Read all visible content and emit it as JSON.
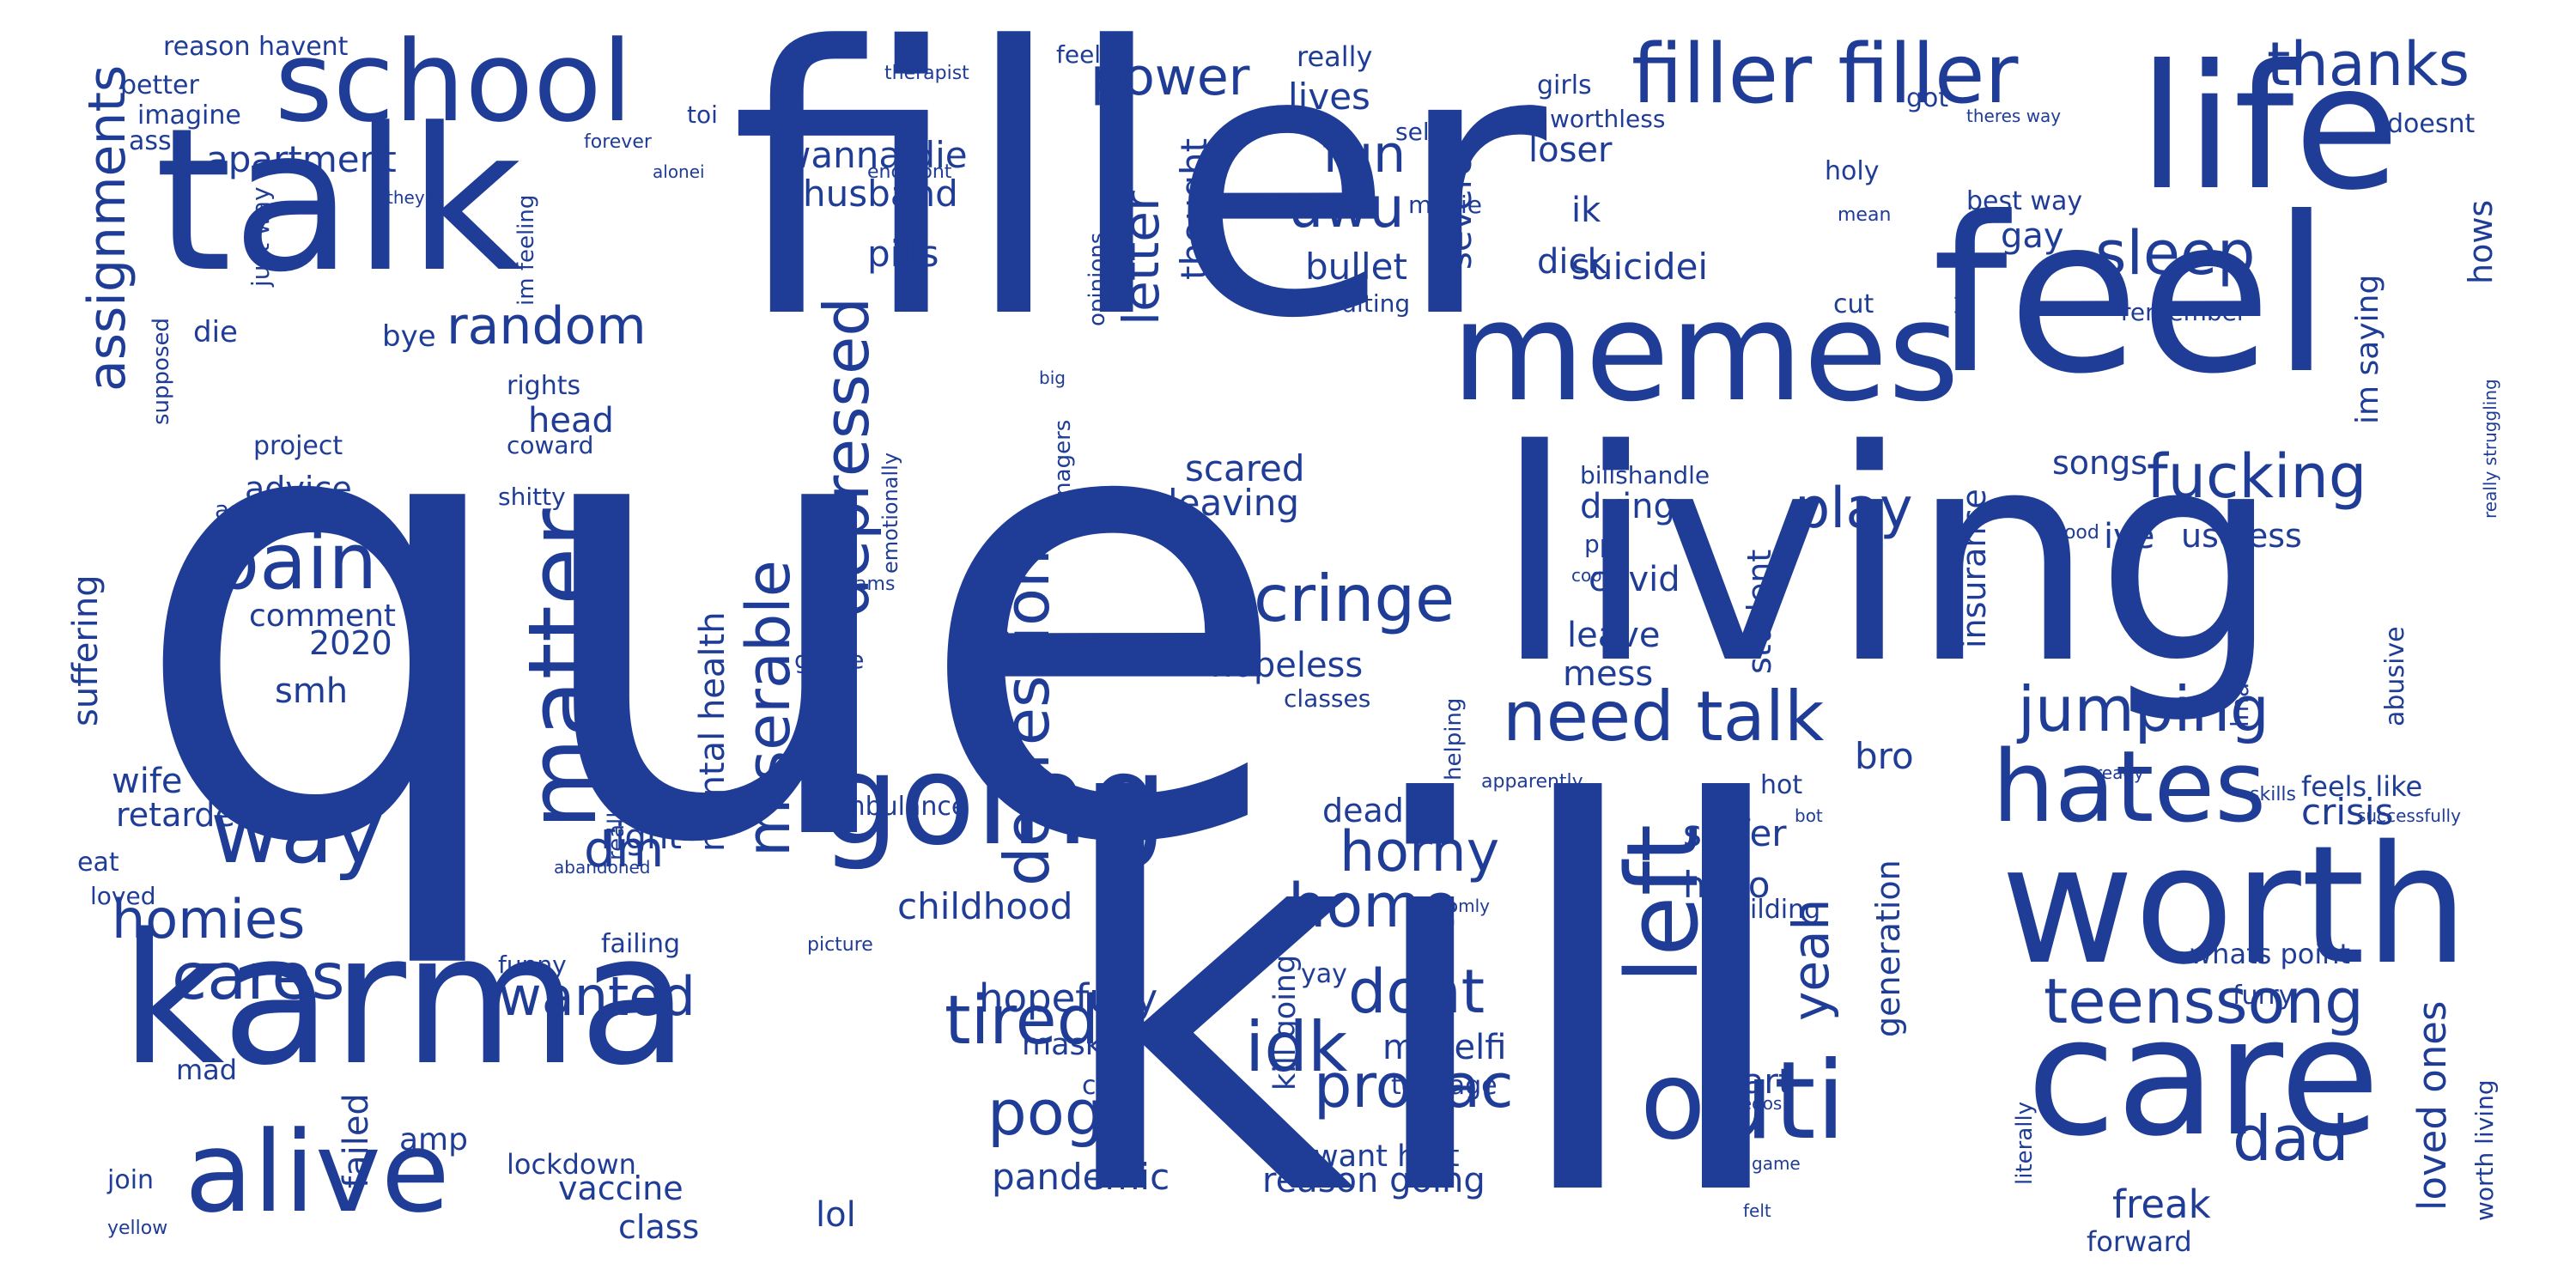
{
  "word_cloud": {
    "color": "#1f3c96",
    "background": "#ffffff",
    "words": [
      {
        "text": "que"
      },
      {
        "text": "filler"
      },
      {
        "text": "kill"
      },
      {
        "text": "living"
      },
      {
        "text": "feel"
      },
      {
        "text": "karma"
      },
      {
        "text": "talk"
      },
      {
        "text": "memes"
      },
      {
        "text": "life"
      },
      {
        "text": "worth"
      },
      {
        "text": "care"
      },
      {
        "text": "school"
      },
      {
        "text": "filler filler"
      },
      {
        "text": "going"
      },
      {
        "text": "alive"
      },
      {
        "text": "outi"
      },
      {
        "text": "hates"
      },
      {
        "text": "left"
      },
      {
        "text": "matter"
      },
      {
        "text": "way"
      },
      {
        "text": "thanks"
      },
      {
        "text": "need talk"
      },
      {
        "text": "pain"
      },
      {
        "text": "cringe"
      },
      {
        "text": "jumping"
      },
      {
        "text": "teenssong"
      },
      {
        "text": "fucking"
      },
      {
        "text": "idk"
      },
      {
        "text": "sleep"
      },
      {
        "text": "depressed"
      },
      {
        "text": "cares"
      },
      {
        "text": "tired"
      },
      {
        "text": "miserable"
      },
      {
        "text": "depression"
      },
      {
        "text": "prozac"
      },
      {
        "text": "home"
      },
      {
        "text": "dont"
      },
      {
        "text": "dad"
      },
      {
        "text": "pog"
      },
      {
        "text": "horny"
      },
      {
        "text": "play"
      },
      {
        "text": "assignments"
      },
      {
        "text": "random"
      },
      {
        "text": "homies"
      },
      {
        "text": "wanted"
      },
      {
        "text": "uwu"
      },
      {
        "text": "power"
      },
      {
        "text": "fun"
      },
      {
        "text": "letter"
      },
      {
        "text": "yeah"
      },
      {
        "text": "dm"
      },
      {
        "text": "hopefully"
      },
      {
        "text": "loved ones"
      },
      {
        "text": "wanna die"
      },
      {
        "text": "thought"
      },
      {
        "text": "mental health"
      },
      {
        "text": "apartment"
      },
      {
        "text": "husband"
      },
      {
        "text": "pills"
      },
      {
        "text": "lives"
      },
      {
        "text": "bullet"
      },
      {
        "text": "severe"
      },
      {
        "text": "suicidei"
      },
      {
        "text": "scared"
      },
      {
        "text": "leaving"
      },
      {
        "text": "hopeless"
      },
      {
        "text": "childhood"
      },
      {
        "text": "myselfi"
      },
      {
        "text": "pandemic"
      },
      {
        "text": "reason going"
      },
      {
        "text": "freak"
      },
      {
        "text": "crisis"
      },
      {
        "text": "useless"
      },
      {
        "text": "suffer"
      },
      {
        "text": "hello"
      },
      {
        "text": "bro"
      },
      {
        "text": "insurance"
      },
      {
        "text": "student"
      },
      {
        "text": "generation"
      },
      {
        "text": "apart"
      },
      {
        "text": "songs"
      },
      {
        "text": "ive"
      },
      {
        "text": "loser"
      },
      {
        "text": "ik"
      },
      {
        "text": "dick"
      },
      {
        "text": "gay"
      },
      {
        "text": "hows"
      },
      {
        "text": "im saying"
      },
      {
        "text": "dying"
      },
      {
        "text": "covid"
      },
      {
        "text": "leave"
      },
      {
        "text": "mess"
      },
      {
        "text": "comment"
      },
      {
        "text": "2020"
      },
      {
        "text": "advice"
      },
      {
        "text": "smh"
      },
      {
        "text": "head"
      },
      {
        "text": "right"
      },
      {
        "text": "retarded"
      },
      {
        "text": "wife"
      },
      {
        "text": "suffering"
      },
      {
        "text": "amp"
      },
      {
        "text": "failed"
      },
      {
        "text": "vaccine"
      },
      {
        "text": "class"
      },
      {
        "text": "lol"
      },
      {
        "text": "irl"
      },
      {
        "text": "dead"
      },
      {
        "text": "kill going"
      },
      {
        "text": "want hurt"
      },
      {
        "text": "masks"
      },
      {
        "text": "cruel"
      },
      {
        "text": "teenage"
      },
      {
        "text": "yay"
      },
      {
        "text": "abusive"
      },
      {
        "text": "worth living"
      },
      {
        "text": "furry"
      },
      {
        "text": "forward"
      },
      {
        "text": "whats point"
      },
      {
        "text": "feels like"
      },
      {
        "text": "building"
      },
      {
        "text": "hot"
      },
      {
        "text": "reason havent"
      },
      {
        "text": "imagine"
      },
      {
        "text": "better"
      },
      {
        "text": "ass"
      },
      {
        "text": "just way"
      },
      {
        "text": "die"
      },
      {
        "text": "bye"
      },
      {
        "text": "supposed"
      },
      {
        "text": "im feeling"
      },
      {
        "text": "project"
      },
      {
        "text": "assignment"
      },
      {
        "text": "coward"
      },
      {
        "text": "shitty"
      },
      {
        "text": "rights"
      },
      {
        "text": "anymoreim"
      },
      {
        "text": "emotionally"
      },
      {
        "text": "grade"
      },
      {
        "text": "dreams"
      },
      {
        "text": "teenagers"
      },
      {
        "text": "opinions"
      },
      {
        "text": "really"
      },
      {
        "text": "self"
      },
      {
        "text": "movie"
      },
      {
        "text": "waiting"
      },
      {
        "text": "girls"
      },
      {
        "text": "worthless"
      },
      {
        "text": "got"
      },
      {
        "text": "holy"
      },
      {
        "text": "doesnt"
      },
      {
        "text": "best way"
      },
      {
        "text": "remember"
      },
      {
        "text": "cut"
      },
      {
        "text": "bit"
      },
      {
        "text": "therapist"
      },
      {
        "text": "toi"
      },
      {
        "text": "feels"
      },
      {
        "text": "forever"
      },
      {
        "text": "alonei"
      },
      {
        "text": "theyll"
      },
      {
        "text": "end dont"
      },
      {
        "text": "id"
      },
      {
        "text": "mean"
      },
      {
        "text": "theres way"
      },
      {
        "text": "really struggling"
      },
      {
        "text": "big"
      },
      {
        "text": "billshandle"
      },
      {
        "text": "pp"
      },
      {
        "text": "cookie"
      },
      {
        "text": "ur"
      },
      {
        "text": "good"
      },
      {
        "text": "lmao"
      },
      {
        "text": "classes"
      },
      {
        "text": "helping"
      },
      {
        "text": "apparently"
      },
      {
        "text": "ready"
      },
      {
        "text": "skills"
      },
      {
        "text": "successfully"
      },
      {
        "text": "bot"
      },
      {
        "text": "ambulance"
      },
      {
        "text": "write"
      },
      {
        "text": "eat"
      },
      {
        "text": "loved"
      },
      {
        "text": "abandoned"
      },
      {
        "text": "failing"
      },
      {
        "text": "funny"
      },
      {
        "text": "picture"
      },
      {
        "text": "randomly"
      },
      {
        "text": "mad"
      },
      {
        "text": "join"
      },
      {
        "text": "lockdown"
      },
      {
        "text": "yellow"
      },
      {
        "text": "pedos"
      },
      {
        "text": "literally"
      },
      {
        "text": "game"
      },
      {
        "text": "felt"
      },
      {
        "text": "really good"
      }
    ]
  }
}
